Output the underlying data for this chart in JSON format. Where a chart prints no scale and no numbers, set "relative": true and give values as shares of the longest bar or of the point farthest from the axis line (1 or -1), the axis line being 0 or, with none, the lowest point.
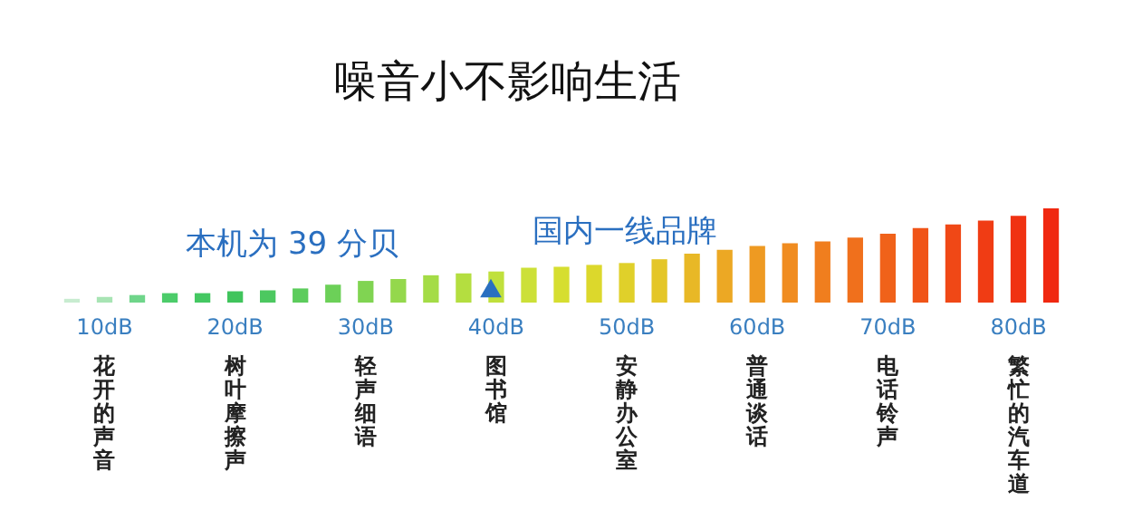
{
  "chart_data": {
    "type": "bar",
    "title": "噪音小不影响生活",
    "relative": true,
    "categories": [
      null,
      "10dB",
      null,
      null,
      null,
      "20dB",
      null,
      null,
      null,
      "30dB",
      null,
      null,
      null,
      "40dB",
      null,
      null,
      null,
      "50dB",
      null,
      null,
      null,
      "60dB",
      null,
      null,
      null,
      "70dB",
      null,
      null,
      null,
      "80dB",
      null
    ],
    "series": [
      {
        "values": [
          0.04,
          0.06,
          0.08,
          0.1,
          0.1,
          0.12,
          0.13,
          0.15,
          0.19,
          0.23,
          0.25,
          0.29,
          0.31,
          0.33,
          0.37,
          0.38,
          0.4,
          0.42,
          0.46,
          0.52,
          0.56,
          0.6,
          0.63,
          0.65,
          0.69,
          0.73,
          0.79,
          0.83,
          0.87,
          0.92,
          1
        ],
        "colors": [
          "#c8ecd0",
          "#a8e4b4",
          "#6fd58a",
          "#4ccc6a",
          "#44c862",
          "#40c45c",
          "#4cc860",
          "#5ccc5c",
          "#6cd058",
          "#80d452",
          "#94d84c",
          "#a4dc46",
          "#b4de40",
          "#c0e03c",
          "#cce038",
          "#d6de30",
          "#dcd82c",
          "#e0d02a",
          "#e4c628",
          "#e8b826",
          "#eca824",
          "#ee9a22",
          "#f08c20",
          "#f07e1e",
          "#f0701c",
          "#f0621a",
          "#f05418",
          "#f04816",
          "#f03c14",
          "#f03212",
          "#f02810"
        ]
      }
    ],
    "tick_labels": "x",
    "grid": false,
    "annotations": [
      "本机为 39 分贝",
      "国内一线品牌",
      "花开的声音",
      "树叶摩擦声",
      "轻声细语",
      "图书馆",
      "安静办公室",
      "普通谈话",
      "电话铃声",
      "繁忙的汽车道"
    ]
  }
}
